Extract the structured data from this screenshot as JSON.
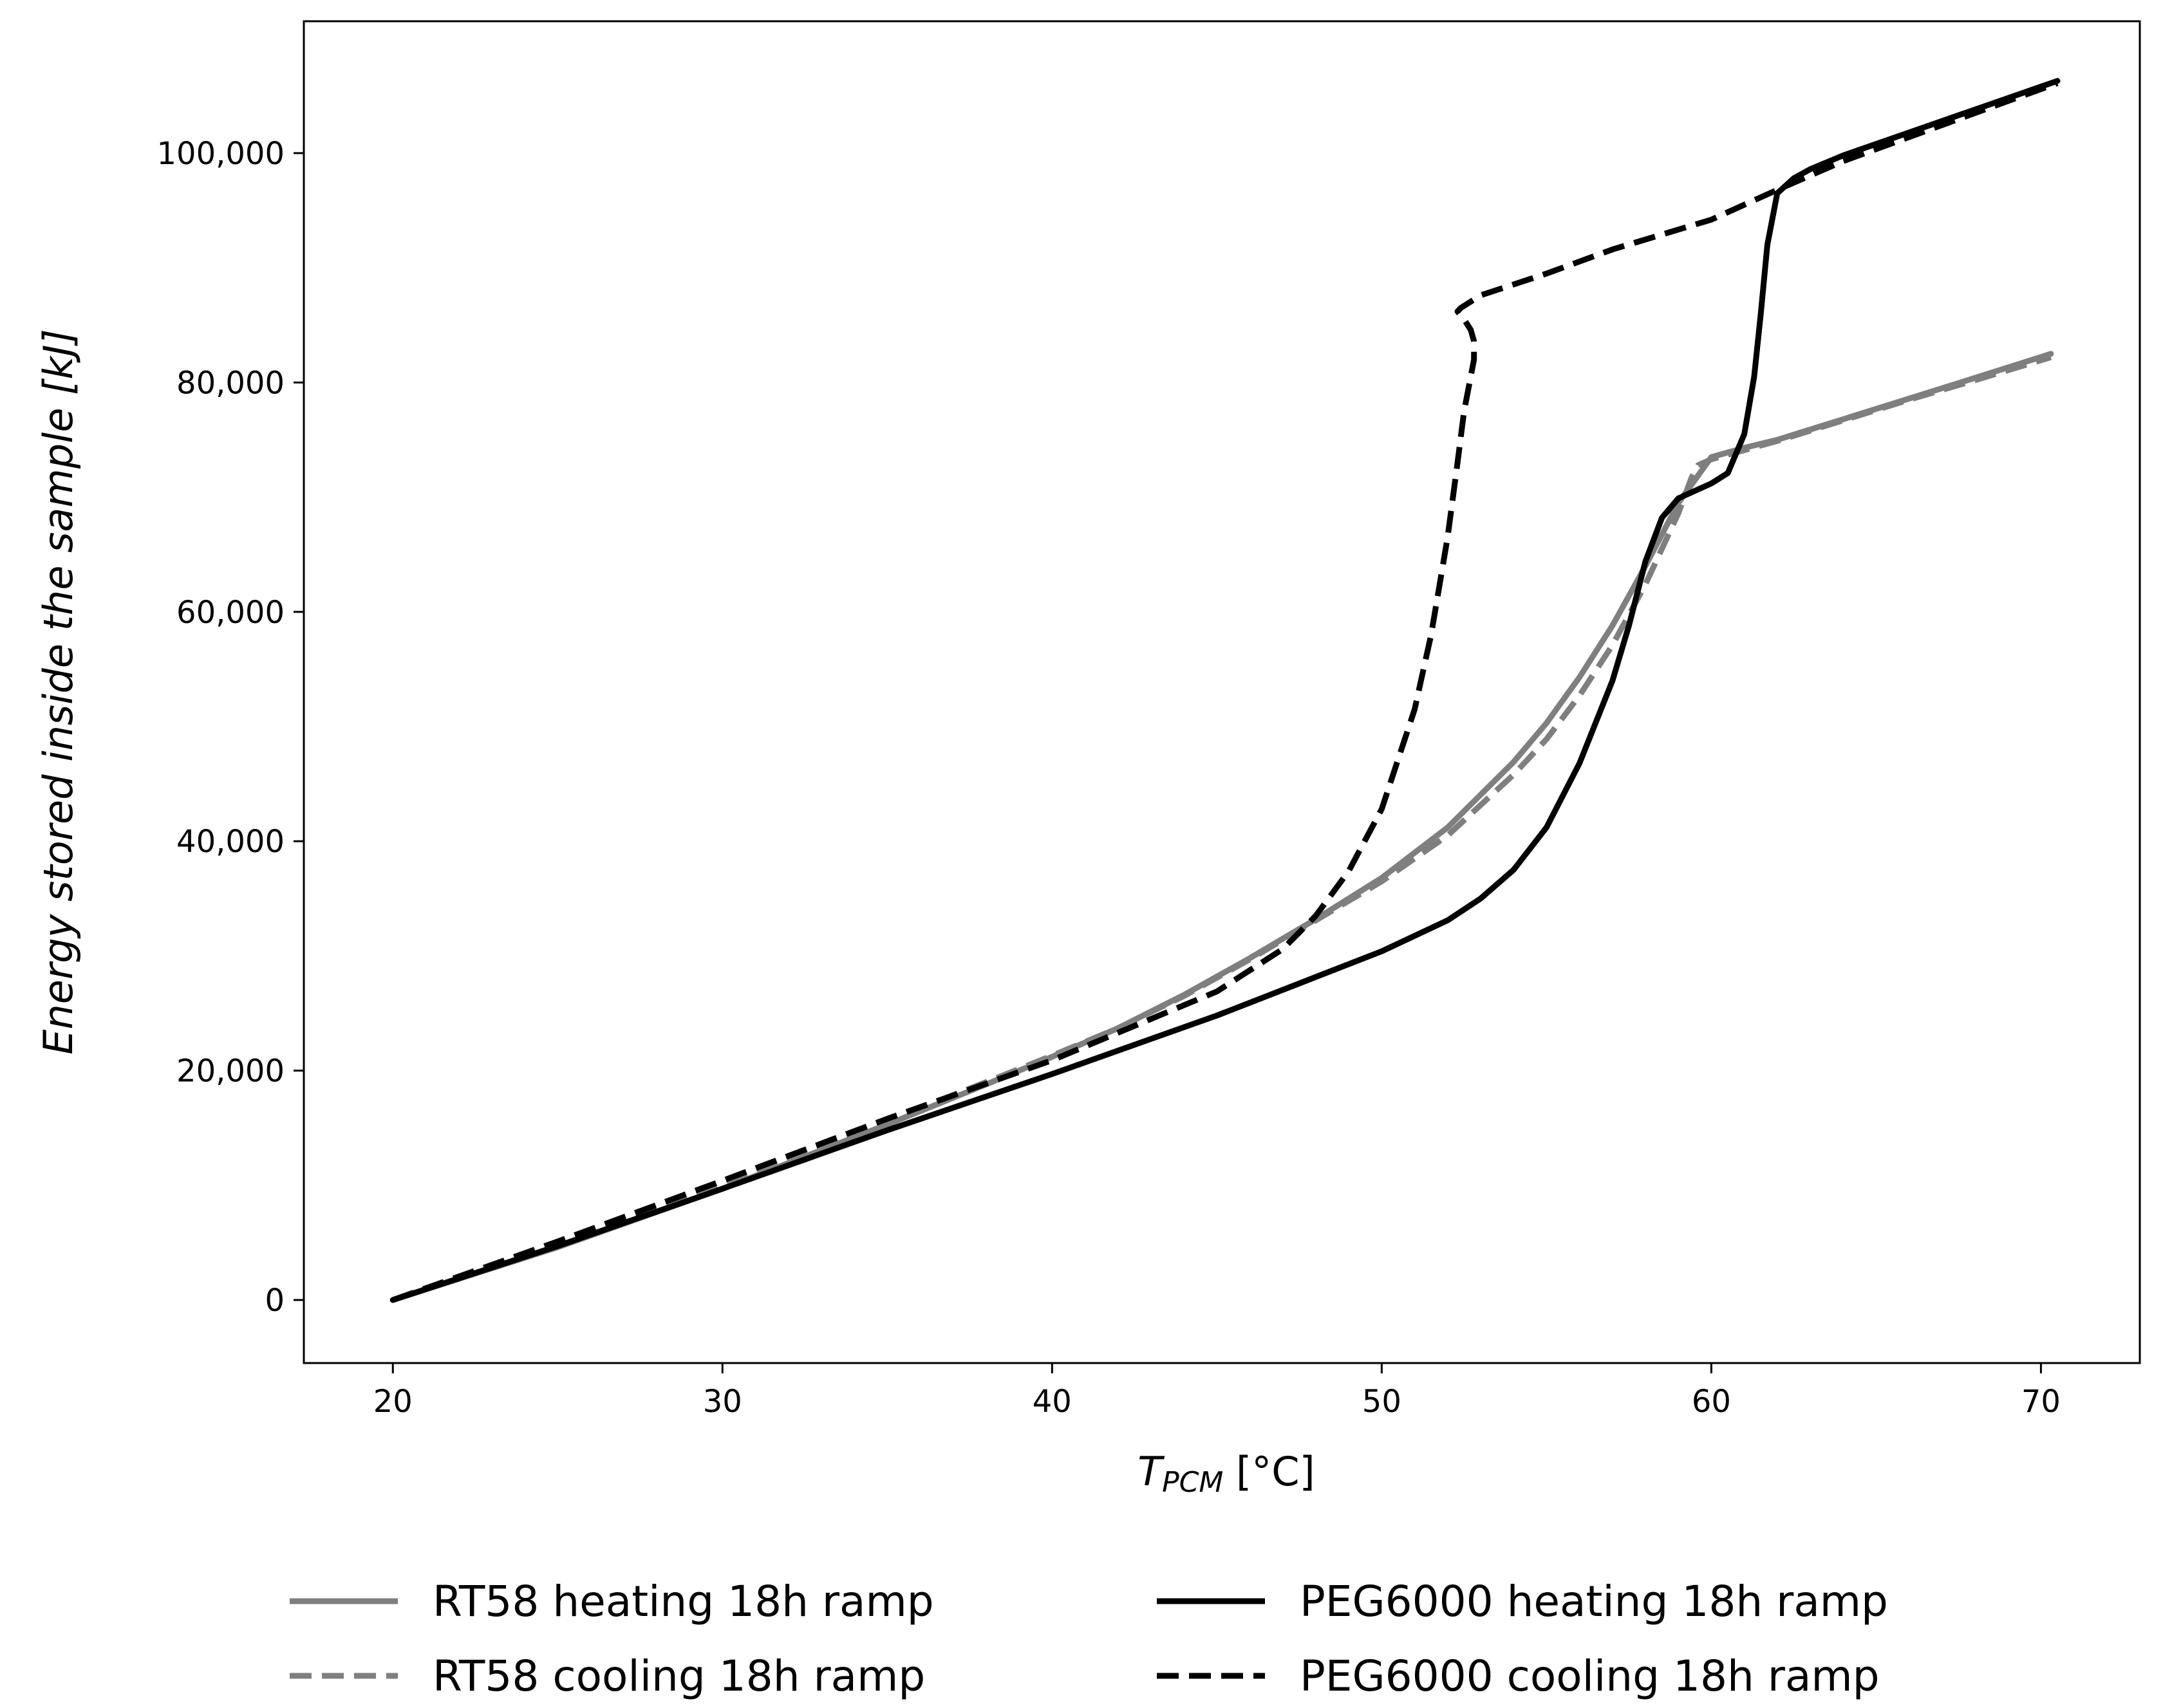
{
  "chart_data": {
    "type": "line",
    "title": "",
    "xlabel": {
      "main": "T",
      "sub": "PCM",
      "unit": " [°C]"
    },
    "ylabel": "Energy stored inside the sample [kJ]",
    "xlim": [
      17.3,
      73.0
    ],
    "ylim": [
      -5500,
      111500
    ],
    "xticks": [
      20,
      30,
      40,
      50,
      60,
      70
    ],
    "xtick_labels": [
      "20",
      "30",
      "40",
      "50",
      "60",
      "70"
    ],
    "yticks": [
      0,
      20000,
      40000,
      60000,
      80000,
      100000
    ],
    "ytick_labels": [
      "0",
      "20,000",
      "40,000",
      "60,000",
      "80,000",
      "100,000"
    ],
    "grid": false,
    "legend_position": "bottom",
    "series": [
      {
        "name": "RT58 heating 18h ramp",
        "color": "#7f7f7f",
        "style": "solid",
        "x": [
          20,
          25,
          30,
          35,
          38,
          40,
          42,
          44,
          46,
          48,
          50,
          52,
          54,
          55,
          56,
          57,
          58,
          59,
          60,
          61,
          62,
          63,
          64,
          66,
          68,
          70.3
        ],
        "y": [
          0,
          4600,
          9700,
          15300,
          18800,
          21200,
          23700,
          26600,
          29800,
          33200,
          36800,
          41200,
          46900,
          50300,
          54300,
          58800,
          64000,
          69500,
          73500,
          74300,
          75000,
          75900,
          76800,
          78600,
          80400,
          82500
        ]
      },
      {
        "name": "RT58 cooling 18h ramp",
        "color": "#7f7f7f",
        "style": "dashed",
        "x": [
          20,
          25,
          30,
          35,
          38,
          40,
          42,
          44,
          46,
          48,
          50,
          52,
          54,
          55,
          56,
          57,
          58,
          59,
          59.4,
          59.6,
          60,
          61,
          62,
          63,
          64,
          66,
          68,
          70.3
        ],
        "y": [
          0,
          4800,
          10000,
          15600,
          19000,
          21300,
          23700,
          26500,
          29700,
          33100,
          36500,
          40500,
          45800,
          48900,
          52700,
          57100,
          62400,
          68600,
          71700,
          72800,
          73300,
          74100,
          74900,
          75800,
          76700,
          78500,
          80200,
          82200
        ]
      },
      {
        "name": "PEG6000 heating 18h ramp",
        "color": "#000000",
        "style": "solid",
        "x": [
          20,
          25,
          30,
          35,
          40,
          45,
          50,
          52,
          53,
          54,
          55,
          56,
          57,
          57.5,
          58,
          58.5,
          59,
          60,
          60.5,
          61,
          61.3,
          61.5,
          61.7,
          62,
          62.5,
          63,
          64,
          66,
          68,
          70.5
        ],
        "y": [
          0,
          4700,
          9700,
          14800,
          19700,
          24800,
          30400,
          33100,
          35000,
          37500,
          41200,
          46800,
          54000,
          58800,
          64400,
          68200,
          69900,
          71200,
          72100,
          75500,
          80500,
          86000,
          92000,
          96500,
          97800,
          98600,
          99800,
          101800,
          103800,
          106300
        ]
      },
      {
        "name": "PEG6000 cooling 18h ramp",
        "color": "#000000",
        "style": "dashed",
        "x": [
          20,
          25,
          30,
          35,
          40,
          45,
          47,
          48,
          49,
          50,
          51,
          51.5,
          52,
          52.3,
          52.5,
          52.7,
          52.8,
          52.8,
          52.7,
          52.5,
          52.3,
          52.4,
          53,
          55,
          57,
          60,
          62,
          64,
          66,
          68,
          70.5
        ],
        "y": [
          0,
          5100,
          10400,
          15800,
          20900,
          26900,
          30600,
          33500,
          37400,
          42800,
          51500,
          58000,
          66500,
          73000,
          77500,
          80500,
          82000,
          83600,
          84600,
          85500,
          86200,
          86500,
          87600,
          89500,
          91600,
          94200,
          96800,
          99300,
          101400,
          103500,
          106100
        ]
      }
    ]
  }
}
